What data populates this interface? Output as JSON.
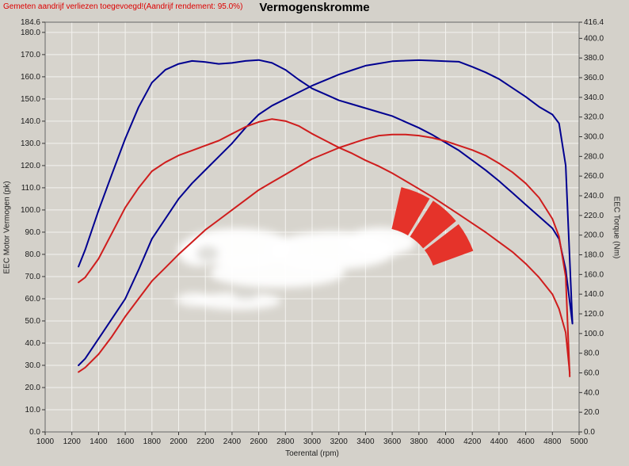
{
  "header": {
    "note": "Gemeten aandrijf verliezen toegevoegd!(Aandrijf rendement: 95.0%)"
  },
  "colors": {
    "background": "#d4d1ca",
    "plot_background": "#d7d4cd",
    "grid": "#f3f2ee",
    "axis": "#666666",
    "tick": "#333333",
    "label_text": "#1a1a1a",
    "note_red": "#dd0000",
    "blue_curve": "#000090",
    "red_curve": "#cf1d1d",
    "logo_red": "#e5332a",
    "watermark_white": "#ffffff"
  },
  "chart_data": {
    "type": "line",
    "title": "Vermogenskromme",
    "xlabel": "Toerental (rpm)",
    "ylabel_left": "EEC Motor Vermogen (pk)",
    "ylabel_right": "EEC Torque (Nm)",
    "xlim": [
      1000,
      5000
    ],
    "ylim_left": [
      0,
      184.6
    ],
    "ylim_right": [
      0,
      416.4
    ],
    "grid": true,
    "legend": "none",
    "x_tick_labels": [
      "1000",
      "1200",
      "1400",
      "1600",
      "1800",
      "2000",
      "2200",
      "2400",
      "2600",
      "2800",
      "3000",
      "3200",
      "3400",
      "3600",
      "3800",
      "4000",
      "4200",
      "4400",
      "4600",
      "4800",
      "5000"
    ],
    "left_tick_labels": [
      "184.6",
      "180.0",
      "170.0",
      "160.0",
      "150.0",
      "140.0",
      "130.0",
      "120.0",
      "110.0",
      "100.0",
      "90.0",
      "80.0",
      "70.0",
      "60.0",
      "50.0",
      "40.0",
      "30.0",
      "20.0",
      "10.0",
      "0.0"
    ],
    "right_tick_labels": [
      "416.4",
      "400.0",
      "380.0",
      "360.0",
      "340.0",
      "320.0",
      "300.0",
      "280.0",
      "260.0",
      "240.0",
      "220.0",
      "200.0",
      "180.0",
      "160.0",
      "140.0",
      "120.0",
      "100.0",
      "80.0",
      "60.0",
      "40.0",
      "20.0",
      "0.0"
    ],
    "series": [
      {
        "name": "blue-torque",
        "axis": "right",
        "unit": "Nm",
        "color": "#000090",
        "x": [
          1250,
          1300,
          1400,
          1500,
          1600,
          1700,
          1800,
          1900,
          2000,
          2100,
          2200,
          2300,
          2400,
          2500,
          2600,
          2700,
          2800,
          2900,
          3000,
          3100,
          3200,
          3300,
          3400,
          3500,
          3600,
          3700,
          3800,
          3900,
          4000,
          4100,
          4200,
          4300,
          4400,
          4500,
          4600,
          4700,
          4800,
          4850,
          4900,
          4950
        ],
        "values": [
          168,
          185,
          225,
          262,
          298,
          330,
          355,
          368,
          374,
          377,
          376,
          374,
          375,
          377,
          378,
          375,
          368,
          358,
          349,
          343,
          337,
          333,
          329,
          325,
          321,
          315,
          309,
          302,
          294,
          286,
          276,
          266,
          255,
          243,
          231,
          219,
          207,
          196,
          165,
          110
        ]
      },
      {
        "name": "blue-power",
        "axis": "left",
        "unit": "pk",
        "color": "#000090",
        "x": [
          1250,
          1300,
          1400,
          1500,
          1600,
          1700,
          1800,
          1900,
          2000,
          2100,
          2200,
          2300,
          2400,
          2500,
          2600,
          2700,
          2800,
          2900,
          3000,
          3100,
          3200,
          3300,
          3400,
          3500,
          3600,
          3700,
          3800,
          3900,
          4000,
          4100,
          4200,
          4300,
          4400,
          4500,
          4600,
          4700,
          4800,
          4850,
          4900,
          4950
        ],
        "values": [
          30,
          33,
          42,
          51,
          60,
          73,
          87,
          96,
          105,
          112,
          118,
          124,
          130,
          137,
          143,
          147,
          150,
          153,
          156,
          158.5,
          161,
          163,
          165,
          166,
          167,
          167.3,
          167.5,
          167.3,
          167,
          166.8,
          164.5,
          162,
          159,
          155,
          151,
          146.5,
          143,
          139,
          120,
          49
        ]
      },
      {
        "name": "red-torque",
        "axis": "right",
        "unit": "Nm",
        "color": "#cf1d1d",
        "x": [
          1250,
          1300,
          1400,
          1500,
          1600,
          1700,
          1800,
          1900,
          2000,
          2100,
          2200,
          2300,
          2400,
          2500,
          2600,
          2700,
          2800,
          2900,
          3000,
          3100,
          3200,
          3300,
          3400,
          3500,
          3600,
          3700,
          3800,
          3900,
          4000,
          4100,
          4200,
          4300,
          4400,
          4500,
          4600,
          4700,
          4800,
          4850,
          4900,
          4930
        ],
        "values": [
          152,
          157,
          176,
          202,
          228,
          248,
          265,
          274,
          281,
          286,
          291,
          296,
          303,
          310,
          315,
          318,
          316,
          311,
          303,
          296,
          289,
          283,
          276,
          270,
          263,
          255,
          247,
          239,
          230,
          221,
          212,
          203,
          193,
          183,
          171,
          157,
          140,
          125,
          101,
          60
        ]
      },
      {
        "name": "red-power",
        "axis": "left",
        "unit": "pk",
        "color": "#cf1d1d",
        "x": [
          1250,
          1300,
          1400,
          1500,
          1600,
          1700,
          1800,
          1900,
          2000,
          2100,
          2200,
          2300,
          2400,
          2500,
          2600,
          2700,
          2800,
          2900,
          3000,
          3100,
          3200,
          3300,
          3400,
          3500,
          3600,
          3700,
          3800,
          3900,
          4000,
          4100,
          4200,
          4300,
          4400,
          4500,
          4600,
          4700,
          4800,
          4850,
          4900,
          4930
        ],
        "values": [
          27,
          29,
          35,
          43,
          52,
          60,
          68,
          74,
          80,
          85.5,
          91,
          95.5,
          100,
          104.5,
          109,
          112.5,
          116,
          119.5,
          123,
          125.5,
          128,
          130,
          132,
          133.5,
          134,
          134,
          133.5,
          132.5,
          131,
          129,
          127,
          124.5,
          121,
          117,
          112,
          105.5,
          96,
          88,
          70,
          25
        ]
      }
    ]
  }
}
